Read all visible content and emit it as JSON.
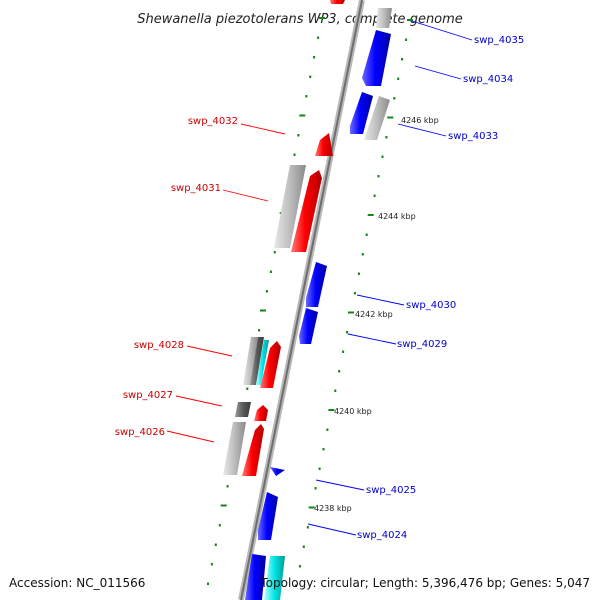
{
  "title": "Shewanella piezotolerans WP3, complete genome",
  "footer": {
    "accession": "Accession: NC_011566",
    "topology": "Topology: circular; Length: 5,396,476 bp; Genes: 5,047"
  },
  "colors": {
    "forward": "#ff0000",
    "reverse": "#0000ff",
    "other": "#bbbbbb",
    "backbone": "#888888",
    "tick": "#118811",
    "label_forward": "#cc0000",
    "label_reverse": "#0000cc"
  },
  "ticks": [
    "4246 kbp",
    "4244 kbp",
    "4242 kbp",
    "4240 kbp",
    "4238 kbp"
  ],
  "genes": [
    {
      "name": "swp_4035",
      "strand": "reverse"
    },
    {
      "name": "swp_4034",
      "strand": "reverse"
    },
    {
      "name": "swp_4033",
      "strand": "reverse"
    },
    {
      "name": "swp_4032",
      "strand": "forward"
    },
    {
      "name": "swp_4031",
      "strand": "forward"
    },
    {
      "name": "swp_4030",
      "strand": "reverse"
    },
    {
      "name": "swp_4029",
      "strand": "reverse"
    },
    {
      "name": "swp_4028",
      "strand": "forward"
    },
    {
      "name": "swp_4027",
      "strand": "forward"
    },
    {
      "name": "swp_4026",
      "strand": "forward"
    },
    {
      "name": "swp_4025",
      "strand": "reverse"
    },
    {
      "name": "swp_4024",
      "strand": "reverse"
    }
  ]
}
